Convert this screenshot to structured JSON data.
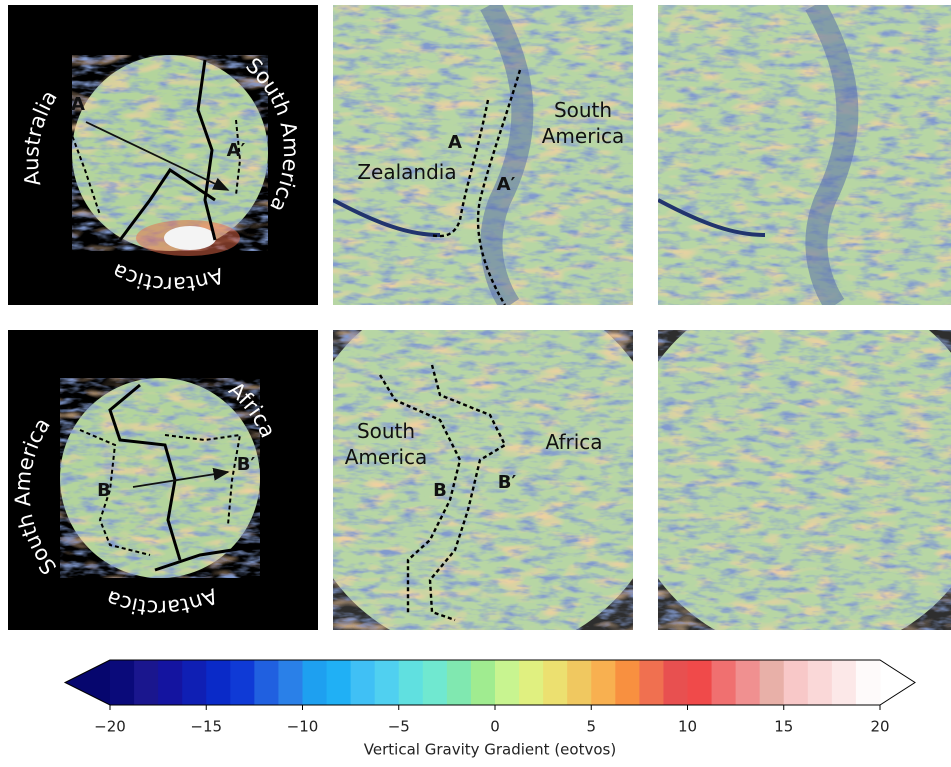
{
  "top_globe": {
    "point_a": "A",
    "point_a2": "A′",
    "south_america": "South America",
    "australia": "Australia",
    "antarctica": "Antarctica"
  },
  "top_map": {
    "point_a": "A",
    "point_a2": "A′",
    "zealandia": "Zealandia",
    "south_america": [
      "South",
      "America"
    ]
  },
  "bottom_globe": {
    "point_b": "B",
    "point_b2": "B′",
    "africa": "Africa",
    "south_america": "South America",
    "antarctica": "Antarctica"
  },
  "bottom_map": {
    "point_b": "B",
    "point_b2": "B′",
    "africa": "Africa",
    "south_america": [
      "South",
      "America"
    ]
  },
  "colorbar": {
    "label": "Vertical Gravity Gradient (eotvos)",
    "lim": [
      -20,
      20
    ],
    "ticks": [
      {
        "value": -20,
        "label": "−20"
      },
      {
        "value": -15,
        "label": "−15"
      },
      {
        "value": -10,
        "label": "−10"
      },
      {
        "value": -5,
        "label": "−5"
      },
      0,
      5,
      10,
      15,
      20
    ],
    "colors": [
      "#0a0a7a",
      "#1a168e",
      "#1414a0",
      "#0f1fb4",
      "#0a2ac8",
      "#0f3ad6",
      "#2060e0",
      "#2a80e8",
      "#1ea0f0",
      "#20b0f5",
      "#40c0f5",
      "#50d0f0",
      "#60e0e0",
      "#70e8d0",
      "#80e8b0",
      "#a0ec90",
      "#c8f490",
      "#e0f080",
      "#ece070",
      "#f0c860",
      "#f8b050",
      "#f89040",
      "#f07050",
      "#e85050",
      "#f04a4a",
      "#f07070",
      "#f09090",
      "#e8b0a8",
      "#f8c8c8",
      "#fad8d8",
      "#fce8e8",
      "#fefafa"
    ],
    "under_color": "#06066e",
    "over_color": "#ffffff"
  }
}
